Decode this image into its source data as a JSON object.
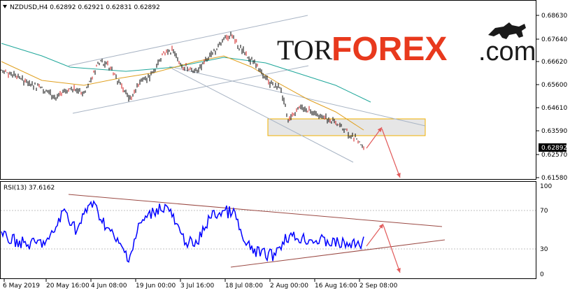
{
  "main_panel": {
    "header": "NZDUSD,H4  0.62892 0.62921 0.62831 0.62892",
    "price_labels": [
      "0.68630",
      "0.67640",
      "0.66620",
      "0.65600",
      "0.64610",
      "0.63590",
      "0.62570",
      "0.61580"
    ],
    "current_price": "0.62892",
    "colors": {
      "candle": "#000000",
      "candle_bear_accent": "#d01818",
      "ma_fast": "#e0a020",
      "ma_slow": "#1fa79a",
      "channel": "#a8b4c4",
      "zone_fill": "#e6e6e6",
      "zone_border": "#f0b000",
      "arrow": "#e25b5b"
    }
  },
  "brand": {
    "part1": "TOR",
    "part2": "FOREX",
    "part3": ".com",
    "icon": "bull-bear-icon"
  },
  "rsi_panel": {
    "header": "RSI(13) 37.6162",
    "levels": [
      "100",
      "70",
      "30",
      "0"
    ],
    "colors": {
      "line": "#0000ff",
      "trend": "#9b4a44"
    }
  },
  "time_axis": [
    "6 May 2019",
    "20 May 16:00",
    "4 Jun 08:00",
    "19 Jun 00:00",
    "3 Jul 16:00",
    "18 Jul 08:00",
    "2 Aug 00:00",
    "16 Aug 16:00",
    "2 Sep 08:00"
  ]
}
